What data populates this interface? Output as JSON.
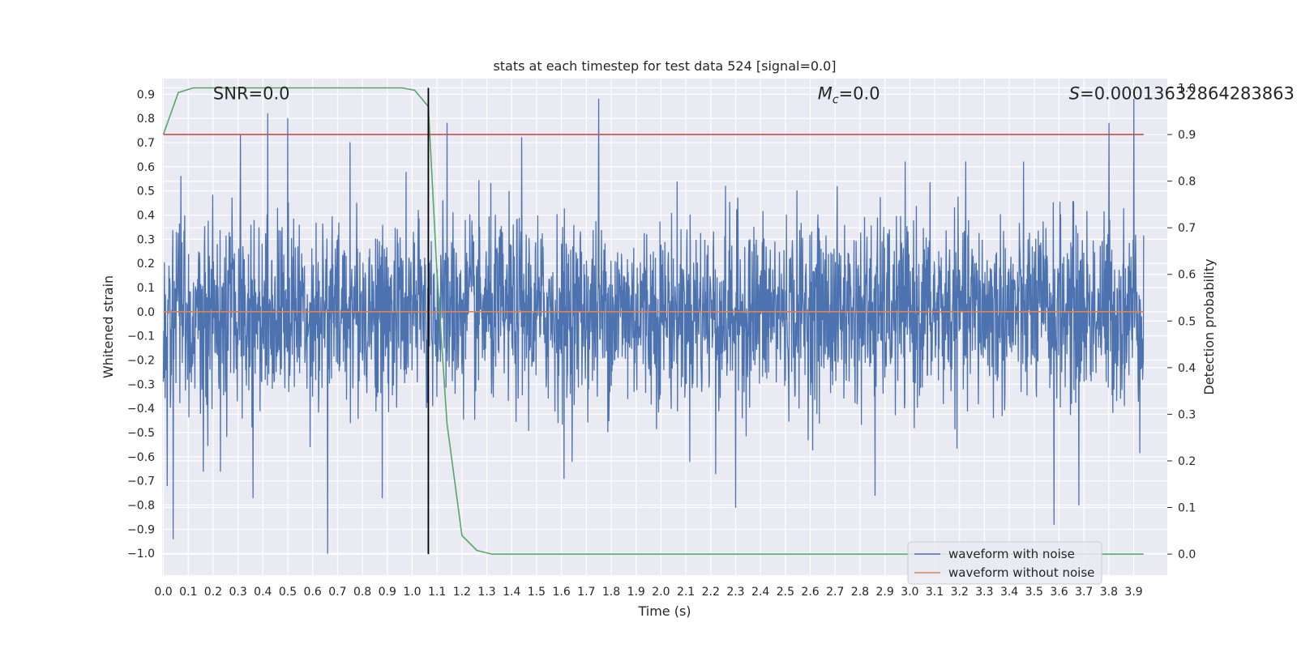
{
  "chart_data": {
    "type": "line",
    "title": "stats at each timestep for test data 524 [signal=0.0]",
    "xlabel": "Time (s)",
    "ylabel_left": "Whitened strain",
    "ylabel_right": "Detection probability",
    "xlim": [
      -0.005,
      4.035
    ],
    "ylim_left": [
      -1.09,
      0.965
    ],
    "ylim_right": [
      -0.045,
      1.02
    ],
    "xticks": [
      0.0,
      0.1,
      0.2,
      0.3,
      0.4,
      0.5,
      0.6,
      0.7,
      0.8,
      0.9,
      1.0,
      1.1,
      1.2,
      1.3,
      1.4,
      1.5,
      1.6,
      1.7,
      1.8,
      1.9,
      2.0,
      2.1,
      2.2,
      2.3,
      2.4,
      2.5,
      2.6,
      2.7,
      2.8,
      2.9,
      3.0,
      3.1,
      3.2,
      3.3,
      3.4,
      3.5,
      3.6,
      3.7,
      3.8,
      3.9
    ],
    "yticks_left": [
      -1.0,
      -0.9,
      -0.8,
      -0.7,
      -0.6,
      -0.5,
      -0.4,
      -0.3,
      -0.2,
      -0.1,
      0.0,
      0.1,
      0.2,
      0.3,
      0.4,
      0.5,
      0.6,
      0.7,
      0.8,
      0.9
    ],
    "yticks_right": [
      0.0,
      0.1,
      0.2,
      0.3,
      0.4,
      0.5,
      0.6,
      0.7,
      0.8,
      0.9,
      1.0
    ],
    "grid": true,
    "legend_position": "lower-right",
    "annotations": {
      "snr": "SNR=0.0",
      "mc_symbol": "M",
      "mc_sub": "c",
      "mc_value": "=0.0",
      "s_symbol": "S",
      "s_value": "=0.00013632864283863",
      "snr_x": 0.2,
      "mc_x": 2.63,
      "s_x": 3.64,
      "y": 0.9
    },
    "series": [
      {
        "name": "waveform with noise",
        "axis": "left",
        "color": "#4c72b0",
        "style": "noise",
        "x_start": 0.0,
        "x_end": 3.94,
        "spikes": [
          {
            "x": 0.015,
            "y": -0.72
          },
          {
            "x": 0.04,
            "y": -0.94
          },
          {
            "x": 0.07,
            "y": 0.56
          },
          {
            "x": 0.16,
            "y": -0.66
          },
          {
            "x": 0.23,
            "y": -0.66
          },
          {
            "x": 0.31,
            "y": 0.73
          },
          {
            "x": 0.36,
            "y": -0.77
          },
          {
            "x": 0.42,
            "y": 0.82
          },
          {
            "x": 0.5,
            "y": 0.8
          },
          {
            "x": 0.66,
            "y": -1.0
          },
          {
            "x": 0.75,
            "y": 0.7
          },
          {
            "x": 0.88,
            "y": -0.77
          },
          {
            "x": 1.14,
            "y": 0.78
          },
          {
            "x": 1.44,
            "y": 0.72
          },
          {
            "x": 1.61,
            "y": -0.69
          },
          {
            "x": 1.75,
            "y": 0.88
          },
          {
            "x": 2.22,
            "y": -0.67
          },
          {
            "x": 2.3,
            "y": -0.81
          },
          {
            "x": 2.86,
            "y": -0.76
          },
          {
            "x": 3.58,
            "y": -0.88
          },
          {
            "x": 3.68,
            "y": -0.8
          },
          {
            "x": 3.8,
            "y": 0.78
          },
          {
            "x": 3.9,
            "y": 0.88
          }
        ]
      },
      {
        "name": "waveform without noise",
        "axis": "left",
        "color": "#dd8452",
        "x": [
          0.0,
          3.94
        ],
        "y": [
          0.0,
          0.0
        ]
      },
      {
        "name": "detection probability",
        "axis": "right",
        "color": "#55a868",
        "x": [
          0.0,
          0.06,
          0.12,
          0.18,
          0.25,
          0.3,
          0.4,
          0.5,
          0.6,
          0.7,
          0.8,
          0.9,
          0.96,
          1.01,
          1.065,
          1.1,
          1.14,
          1.2,
          1.26,
          1.32,
          1.4,
          1.6,
          1.8,
          2.0,
          2.5,
          3.0,
          3.5,
          3.94
        ],
        "y": [
          0.9,
          0.99,
          1.0,
          1.0,
          1.0,
          1.0,
          1.0,
          1.0,
          1.0,
          1.0,
          1.0,
          1.0,
          1.0,
          0.995,
          0.96,
          0.6,
          0.28,
          0.04,
          0.008,
          0.0,
          0.0,
          0.0,
          0.0,
          0.0,
          0.0,
          0.0,
          0.0,
          0.0
        ]
      },
      {
        "name": "threshold",
        "axis": "right",
        "color": "#c44e52",
        "x": [
          0.0,
          3.94
        ],
        "y": [
          0.9,
          0.9
        ]
      }
    ],
    "vline": {
      "x": 1.065,
      "axis": "right",
      "y": [
        0.0,
        1.0
      ],
      "color": "#000000"
    }
  }
}
